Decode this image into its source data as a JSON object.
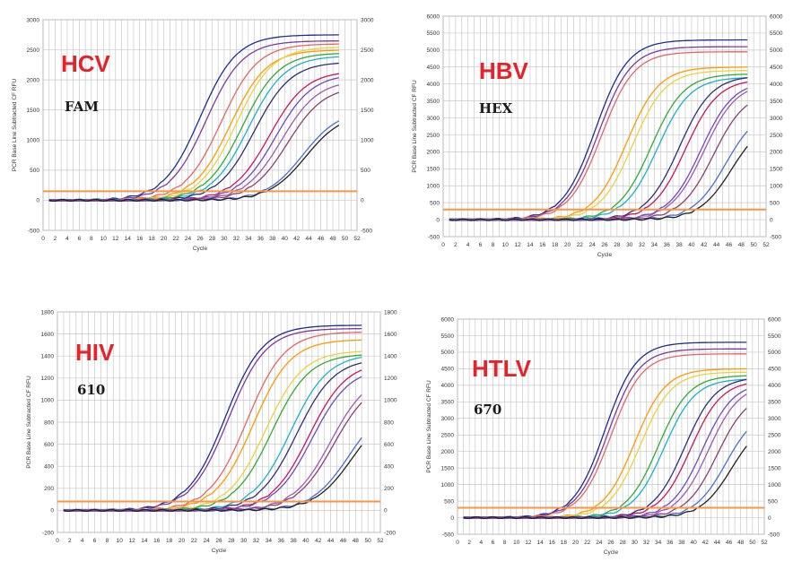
{
  "palette": {
    "label_red": "#e3242b",
    "threshold_orange": "#f79646",
    "curve_colors": [
      "#1f2d8f",
      "#7a3b9c",
      "#e06666",
      "#ff9900",
      "#e8d33c",
      "#33aa33",
      "#19b2c8",
      "#2e2e7a",
      "#c2185b",
      "#6c4bc1",
      "#9b59b6",
      "#8c3f73",
      "#4a6fd1",
      "#222222"
    ]
  },
  "chart_data": [
    {
      "type": "line",
      "id": "hcv",
      "virus_label": "HCV",
      "dye_label": "FAM",
      "xlabel": "Cycle",
      "ylabel": "PCR Base Line Subtracted CF RFU",
      "xlim": [
        0,
        52
      ],
      "ylim": [
        -500,
        3000
      ],
      "xticks": [
        0,
        2,
        4,
        6,
        8,
        10,
        12,
        14,
        16,
        18,
        20,
        22,
        24,
        26,
        28,
        30,
        32,
        34,
        36,
        38,
        40,
        42,
        44,
        46,
        48,
        50,
        52
      ],
      "yticks": [
        -500,
        0,
        500,
        1000,
        1500,
        2000,
        2500,
        3000
      ],
      "threshold": 150,
      "x_end": 49,
      "series": [
        {
          "ct": 20.0,
          "plateau": 2750,
          "slope": 0.33
        },
        {
          "ct": 21.0,
          "plateau": 2650,
          "slope": 0.33
        },
        {
          "ct": 23.5,
          "plateau": 2600,
          "slope": 0.33
        },
        {
          "ct": 25.0,
          "plateau": 2500,
          "slope": 0.33
        },
        {
          "ct": 26.0,
          "plateau": 2550,
          "slope": 0.33
        },
        {
          "ct": 27.0,
          "plateau": 2450,
          "slope": 0.33
        },
        {
          "ct": 28.0,
          "plateau": 2400,
          "slope": 0.33
        },
        {
          "ct": 29.0,
          "plateau": 2300,
          "slope": 0.33
        },
        {
          "ct": 31.5,
          "plateau": 2150,
          "slope": 0.33
        },
        {
          "ct": 32.5,
          "plateau": 2100,
          "slope": 0.33
        },
        {
          "ct": 33.5,
          "plateau": 2000,
          "slope": 0.33
        },
        {
          "ct": 34.5,
          "plateau": 1900,
          "slope": 0.33
        },
        {
          "ct": 37.0,
          "plateau": 1500,
          "slope": 0.33
        },
        {
          "ct": 37.5,
          "plateau": 1450,
          "slope": 0.33
        }
      ]
    },
    {
      "type": "line",
      "id": "hbv",
      "virus_label": "HBV",
      "dye_label": "HEX",
      "xlabel": "Cycle",
      "ylabel": "PCR Base Line Subtracted CF RFU",
      "xlim": [
        0,
        52
      ],
      "ylim": [
        -500,
        6000
      ],
      "xticks": [
        0,
        2,
        4,
        6,
        8,
        10,
        12,
        14,
        16,
        18,
        20,
        22,
        24,
        26,
        28,
        30,
        32,
        34,
        36,
        38,
        40,
        42,
        44,
        46,
        48,
        50,
        52
      ],
      "yticks": [
        -500,
        0,
        500,
        1000,
        1500,
        2000,
        2500,
        3000,
        3500,
        4000,
        4500,
        5000,
        5500,
        6000
      ],
      "threshold": 300,
      "x_end": 49,
      "series": [
        {
          "ct": 18.5,
          "plateau": 5300,
          "slope": 0.38
        },
        {
          "ct": 19.0,
          "plateau": 5100,
          "slope": 0.38
        },
        {
          "ct": 19.5,
          "plateau": 4950,
          "slope": 0.38
        },
        {
          "ct": 23.5,
          "plateau": 4500,
          "slope": 0.38
        },
        {
          "ct": 24.5,
          "plateau": 4400,
          "slope": 0.38
        },
        {
          "ct": 27.5,
          "plateau": 4300,
          "slope": 0.38
        },
        {
          "ct": 28.5,
          "plateau": 4200,
          "slope": 0.38
        },
        {
          "ct": 32.0,
          "plateau": 4250,
          "slope": 0.38
        },
        {
          "ct": 33.0,
          "plateau": 4150,
          "slope": 0.38
        },
        {
          "ct": 35.5,
          "plateau": 4100,
          "slope": 0.38
        },
        {
          "ct": 36.0,
          "plateau": 4050,
          "slope": 0.38
        },
        {
          "ct": 37.5,
          "plateau": 3800,
          "slope": 0.38
        },
        {
          "ct": 39.5,
          "plateau": 3300,
          "slope": 0.38
        },
        {
          "ct": 40.5,
          "plateau": 3000,
          "slope": 0.38
        }
      ]
    },
    {
      "type": "line",
      "id": "hiv",
      "virus_label": "HIV",
      "dye_label": "610",
      "xlabel": "Cycle",
      "ylabel": "PCR Base Line Subtracted CF RFU",
      "xlim": [
        0,
        52
      ],
      "ylim": [
        -200,
        1800
      ],
      "xticks": [
        0,
        2,
        4,
        6,
        8,
        10,
        12,
        14,
        16,
        18,
        20,
        22,
        24,
        26,
        28,
        30,
        32,
        34,
        36,
        38,
        40,
        42,
        44,
        46,
        48,
        50,
        52
      ],
      "yticks": [
        -200,
        0,
        200,
        400,
        600,
        800,
        1000,
        1200,
        1400,
        1600,
        1800
      ],
      "threshold": 80,
      "x_end": 49,
      "series": [
        {
          "ct": 21.0,
          "plateau": 1680,
          "slope": 0.33
        },
        {
          "ct": 21.5,
          "plateau": 1650,
          "slope": 0.33
        },
        {
          "ct": 24.5,
          "plateau": 1620,
          "slope": 0.33
        },
        {
          "ct": 25.5,
          "plateau": 1550,
          "slope": 0.33
        },
        {
          "ct": 27.5,
          "plateau": 1450,
          "slope": 0.33
        },
        {
          "ct": 28.5,
          "plateau": 1420,
          "slope": 0.33
        },
        {
          "ct": 31.5,
          "plateau": 1420,
          "slope": 0.33
        },
        {
          "ct": 32.5,
          "plateau": 1380,
          "slope": 0.33
        },
        {
          "ct": 34.5,
          "plateau": 1350,
          "slope": 0.33
        },
        {
          "ct": 35.0,
          "plateau": 1300,
          "slope": 0.33
        },
        {
          "ct": 38.0,
          "plateau": 1250,
          "slope": 0.33
        },
        {
          "ct": 38.5,
          "plateau": 1200,
          "slope": 0.33
        },
        {
          "ct": 41.0,
          "plateau": 1000,
          "slope": 0.33
        },
        {
          "ct": 41.5,
          "plateau": 950,
          "slope": 0.33
        }
      ]
    },
    {
      "type": "line",
      "id": "htlv",
      "virus_label": "HTLV",
      "dye_label": "670",
      "xlabel": "Cycle",
      "ylabel": "PCR Base Line Subtracted CF RFU",
      "xlim": [
        0,
        52
      ],
      "ylim": [
        -500,
        6000
      ],
      "xticks": [
        0,
        2,
        4,
        6,
        8,
        10,
        12,
        14,
        16,
        18,
        20,
        22,
        24,
        26,
        28,
        30,
        32,
        34,
        36,
        38,
        40,
        42,
        44,
        46,
        48,
        50,
        52
      ],
      "yticks": [
        -500,
        0,
        500,
        1000,
        1500,
        2000,
        2500,
        3000,
        3500,
        4000,
        4500,
        5000,
        5500,
        6000
      ],
      "threshold": 300,
      "x_end": 49,
      "series": [
        {
          "ct": 19.0,
          "plateau": 5300,
          "slope": 0.38
        },
        {
          "ct": 19.5,
          "plateau": 5100,
          "slope": 0.38
        },
        {
          "ct": 20.0,
          "plateau": 4950,
          "slope": 0.38
        },
        {
          "ct": 24.0,
          "plateau": 4500,
          "slope": 0.38
        },
        {
          "ct": 25.0,
          "plateau": 4400,
          "slope": 0.38
        },
        {
          "ct": 28.0,
          "plateau": 4300,
          "slope": 0.38
        },
        {
          "ct": 29.0,
          "plateau": 4200,
          "slope": 0.38
        },
        {
          "ct": 32.5,
          "plateau": 4250,
          "slope": 0.38
        },
        {
          "ct": 33.5,
          "plateau": 4150,
          "slope": 0.38
        },
        {
          "ct": 35.5,
          "plateau": 4100,
          "slope": 0.38
        },
        {
          "ct": 36.5,
          "plateau": 4050,
          "slope": 0.38
        },
        {
          "ct": 38.0,
          "plateau": 3800,
          "slope": 0.38
        },
        {
          "ct": 39.5,
          "plateau": 3300,
          "slope": 0.38
        },
        {
          "ct": 40.5,
          "plateau": 3000,
          "slope": 0.38
        }
      ]
    }
  ]
}
